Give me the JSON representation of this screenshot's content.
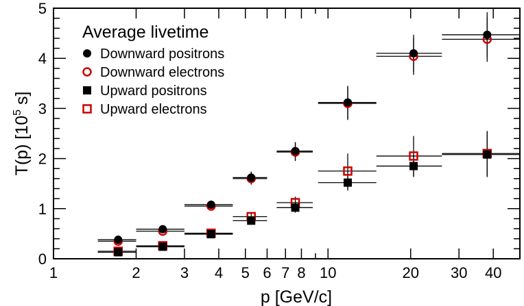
{
  "chart_data": {
    "type": "scatter",
    "xscale": "log",
    "xlim": [
      1,
      50
    ],
    "ylim": [
      0,
      5
    ],
    "xlabel": "p  [GeV/c]",
    "ylabel_main": "T(p)  [10",
    "ylabel_exp": "5",
    "ylabel_tail": " s]",
    "x_ticks": [
      1,
      2,
      3,
      4,
      5,
      6,
      7,
      8,
      10,
      20,
      30,
      40
    ],
    "x_tick_labels": [
      "1",
      "2",
      "3",
      "4",
      "5",
      "6",
      "7",
      "8",
      "10",
      "20",
      "30",
      "40"
    ],
    "y_ticks": [
      0,
      1,
      2,
      3,
      4,
      5
    ],
    "y_tick_labels": [
      "0",
      "1",
      "2",
      "3",
      "4",
      "5"
    ],
    "legend_title": "Average livetime",
    "legend_position": "top-left",
    "series": [
      {
        "name": "Downward positrons",
        "marker": "filled-circle",
        "color": "#000000",
        "points": [
          {
            "x": 1.72,
            "y": 0.38,
            "xlo": 1.45,
            "xhi": 2.0,
            "yerr": 0.03
          },
          {
            "x": 2.5,
            "y": 0.59,
            "xlo": 2.0,
            "xhi": 3.0,
            "yerr": 0.04
          },
          {
            "x": 3.75,
            "y": 1.08,
            "xlo": 3.0,
            "xhi": 4.5,
            "yerr": 0.05
          },
          {
            "x": 5.25,
            "y": 1.62,
            "xlo": 4.5,
            "xhi": 6.0,
            "yerr": 0.12
          },
          {
            "x": 7.6,
            "y": 2.15,
            "xlo": 6.5,
            "xhi": 8.8,
            "yerr": 0.18
          },
          {
            "x": 11.8,
            "y": 3.12,
            "xlo": 9.2,
            "xhi": 15.0,
            "yerr": 0.33
          },
          {
            "x": 20.5,
            "y": 4.1,
            "xlo": 15.0,
            "xhi": 26.0,
            "yerr": 0.37
          },
          {
            "x": 38.0,
            "y": 4.47,
            "xlo": 26.0,
            "xhi": 50.0,
            "yerr": 0.45
          }
        ]
      },
      {
        "name": "Downward electrons",
        "marker": "open-circle",
        "color": "#cc0000",
        "points": [
          {
            "x": 1.72,
            "y": 0.35,
            "xlo": 1.45,
            "xhi": 2.0,
            "yerr": 0.03
          },
          {
            "x": 2.5,
            "y": 0.55,
            "xlo": 2.0,
            "xhi": 3.0,
            "yerr": 0.04
          },
          {
            "x": 3.75,
            "y": 1.05,
            "xlo": 3.0,
            "xhi": 4.5,
            "yerr": 0.05
          },
          {
            "x": 5.25,
            "y": 1.6,
            "xlo": 4.5,
            "xhi": 6.0,
            "yerr": 0.12
          },
          {
            "x": 7.6,
            "y": 2.13,
            "xlo": 6.5,
            "xhi": 8.8,
            "yerr": 0.18
          },
          {
            "x": 11.8,
            "y": 3.1,
            "xlo": 9.2,
            "xhi": 15.0,
            "yerr": 0.33
          },
          {
            "x": 20.5,
            "y": 4.04,
            "xlo": 15.0,
            "xhi": 26.0,
            "yerr": 0.37
          },
          {
            "x": 38.0,
            "y": 4.38,
            "xlo": 26.0,
            "xhi": 50.0,
            "yerr": 0.45
          }
        ]
      },
      {
        "name": "Upward positrons",
        "marker": "filled-square",
        "color": "#000000",
        "points": [
          {
            "x": 1.72,
            "y": 0.13,
            "xlo": 1.45,
            "xhi": 2.0,
            "yerr": 0.03
          },
          {
            "x": 2.5,
            "y": 0.24,
            "xlo": 2.0,
            "xhi": 3.0,
            "yerr": 0.03
          },
          {
            "x": 3.75,
            "y": 0.49,
            "xlo": 3.0,
            "xhi": 4.5,
            "yerr": 0.04
          },
          {
            "x": 5.25,
            "y": 0.76,
            "xlo": 4.5,
            "xhi": 6.0,
            "yerr": 0.06
          },
          {
            "x": 7.6,
            "y": 1.02,
            "xlo": 6.5,
            "xhi": 8.8,
            "yerr": 0.1
          },
          {
            "x": 11.8,
            "y": 1.52,
            "xlo": 9.2,
            "xhi": 15.0,
            "yerr": 0.16
          },
          {
            "x": 20.5,
            "y": 1.85,
            "xlo": 15.0,
            "xhi": 26.0,
            "yerr": 0.22
          },
          {
            "x": 38.0,
            "y": 2.08,
            "xlo": 26.0,
            "xhi": 50.0,
            "yerr": 0.45
          }
        ]
      },
      {
        "name": "Upward electrons",
        "marker": "open-square",
        "color": "#cc0000",
        "points": [
          {
            "x": 1.72,
            "y": 0.15,
            "xlo": 1.45,
            "xhi": 2.0,
            "yerr": 0.03
          },
          {
            "x": 2.5,
            "y": 0.26,
            "xlo": 2.0,
            "xhi": 3.0,
            "yerr": 0.03
          },
          {
            "x": 3.75,
            "y": 0.51,
            "xlo": 3.0,
            "xhi": 4.5,
            "yerr": 0.04
          },
          {
            "x": 5.25,
            "y": 0.84,
            "xlo": 4.5,
            "xhi": 6.0,
            "yerr": 0.07
          },
          {
            "x": 7.6,
            "y": 1.12,
            "xlo": 6.5,
            "xhi": 8.8,
            "yerr": 0.12
          },
          {
            "x": 11.8,
            "y": 1.75,
            "xlo": 9.2,
            "xhi": 15.0,
            "yerr": 0.35
          },
          {
            "x": 20.5,
            "y": 2.05,
            "xlo": 15.0,
            "xhi": 26.0,
            "yerr": 0.4
          },
          {
            "x": 38.0,
            "y": 2.1,
            "xlo": 26.0,
            "xhi": 50.0,
            "yerr": 0.45
          }
        ]
      }
    ]
  }
}
